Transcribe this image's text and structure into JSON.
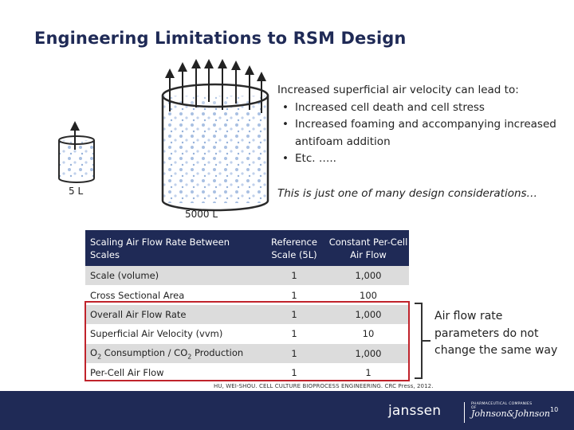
{
  "slide": {
    "title": "Engineering Limitations to RSM Design"
  },
  "illustration": {
    "small_vessel_label": "5 L",
    "large_vessel_label": "5000 L"
  },
  "bullets": {
    "lead": "Increased superficial air velocity can lead to:",
    "items": [
      "Increased cell death and cell stress",
      "Increased foaming and accompanying increased antifoam addition",
      "Etc. ….."
    ]
  },
  "note": "This is just one of many design considerations…",
  "table": {
    "headers": [
      "Scaling Air Flow Rate Between Scales",
      "Reference Scale (5L)",
      "Constant Per-Cell Air Flow"
    ],
    "rows": [
      {
        "param": "Scale (volume)",
        "reference": "1",
        "constant": "1,000"
      },
      {
        "param": "Cross Sectional Area",
        "reference": "1",
        "constant": "100"
      },
      {
        "param": "Overall Air Flow Rate",
        "reference": "1",
        "constant": "1,000"
      },
      {
        "param": "Superficial Air Velocity (vvm)",
        "reference": "1",
        "constant": "10"
      },
      {
        "param": "O2 Consumption / CO2 Production",
        "reference": "1",
        "constant": "1,000"
      },
      {
        "param": "Per-Cell Air Flow",
        "reference": "1",
        "constant": "1"
      }
    ]
  },
  "sidenote": "Air flow rate parameters do not change the same way",
  "citation": "HU, WEI-SHOU. CELL CULTURE BIOPROCESS ENGINEERING. CRC Press, 2012.",
  "footer": {
    "brand": "janssen",
    "brand_sub": "PHARMACEUTICAL COMPANIES OF",
    "brand_script": "Johnson&Johnson",
    "page_number": "10"
  },
  "colors": {
    "title": "#1f2a56",
    "table_header": "#1f2a56",
    "row_alt": "#dcdcdc",
    "highlight": "#c0232b",
    "footer": "#1f2a56"
  }
}
